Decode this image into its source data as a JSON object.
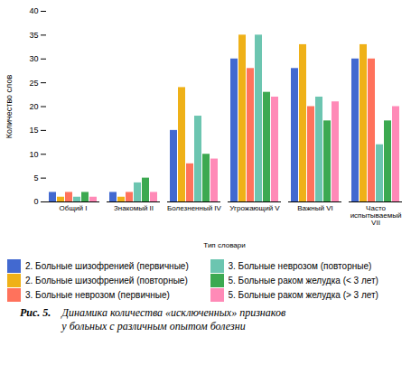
{
  "chart_data": {
    "type": "bar",
    "categories": [
      "Общий I",
      "Знакомый II",
      "Болезненный IV",
      "Угрожающий V",
      "Важный VI",
      "Часто\nиспытываемый\nVII"
    ],
    "series": [
      {
        "name": "2. Больные шизофренией (первичные)",
        "values": [
          2,
          2,
          15,
          30,
          28,
          30
        ]
      },
      {
        "name": "2. Больные шизофренией (повторные)",
        "values": [
          1,
          1,
          24,
          35,
          33,
          33
        ]
      },
      {
        "name": "3. Больные неврозом (первичные)",
        "values": [
          2,
          2,
          8,
          28,
          20,
          30
        ]
      },
      {
        "name": "3. Больные неврозом (повторные)",
        "values": [
          1,
          4,
          18,
          35,
          22,
          12
        ]
      },
      {
        "name": "5. Больные раком желудка (< 3 лет)",
        "values": [
          2,
          5,
          10,
          23,
          17,
          17
        ]
      },
      {
        "name": "5. Больные раком желудка (> 3 лет)",
        "values": [
          1,
          2,
          9,
          22,
          21,
          20
        ]
      }
    ],
    "xlabel": "Тип словари",
    "ylabel": "Количество слов",
    "ylim": [
      0,
      40
    ],
    "yticks": [
      0,
      5,
      10,
      15,
      20,
      25,
      30,
      35,
      40
    ],
    "grid": false,
    "legend": "bottom",
    "annotations": [
      "Рис. 5.",
      "Динамика количества «исключенных» признаков\nу больных с различным опытом болезни"
    ]
  }
}
